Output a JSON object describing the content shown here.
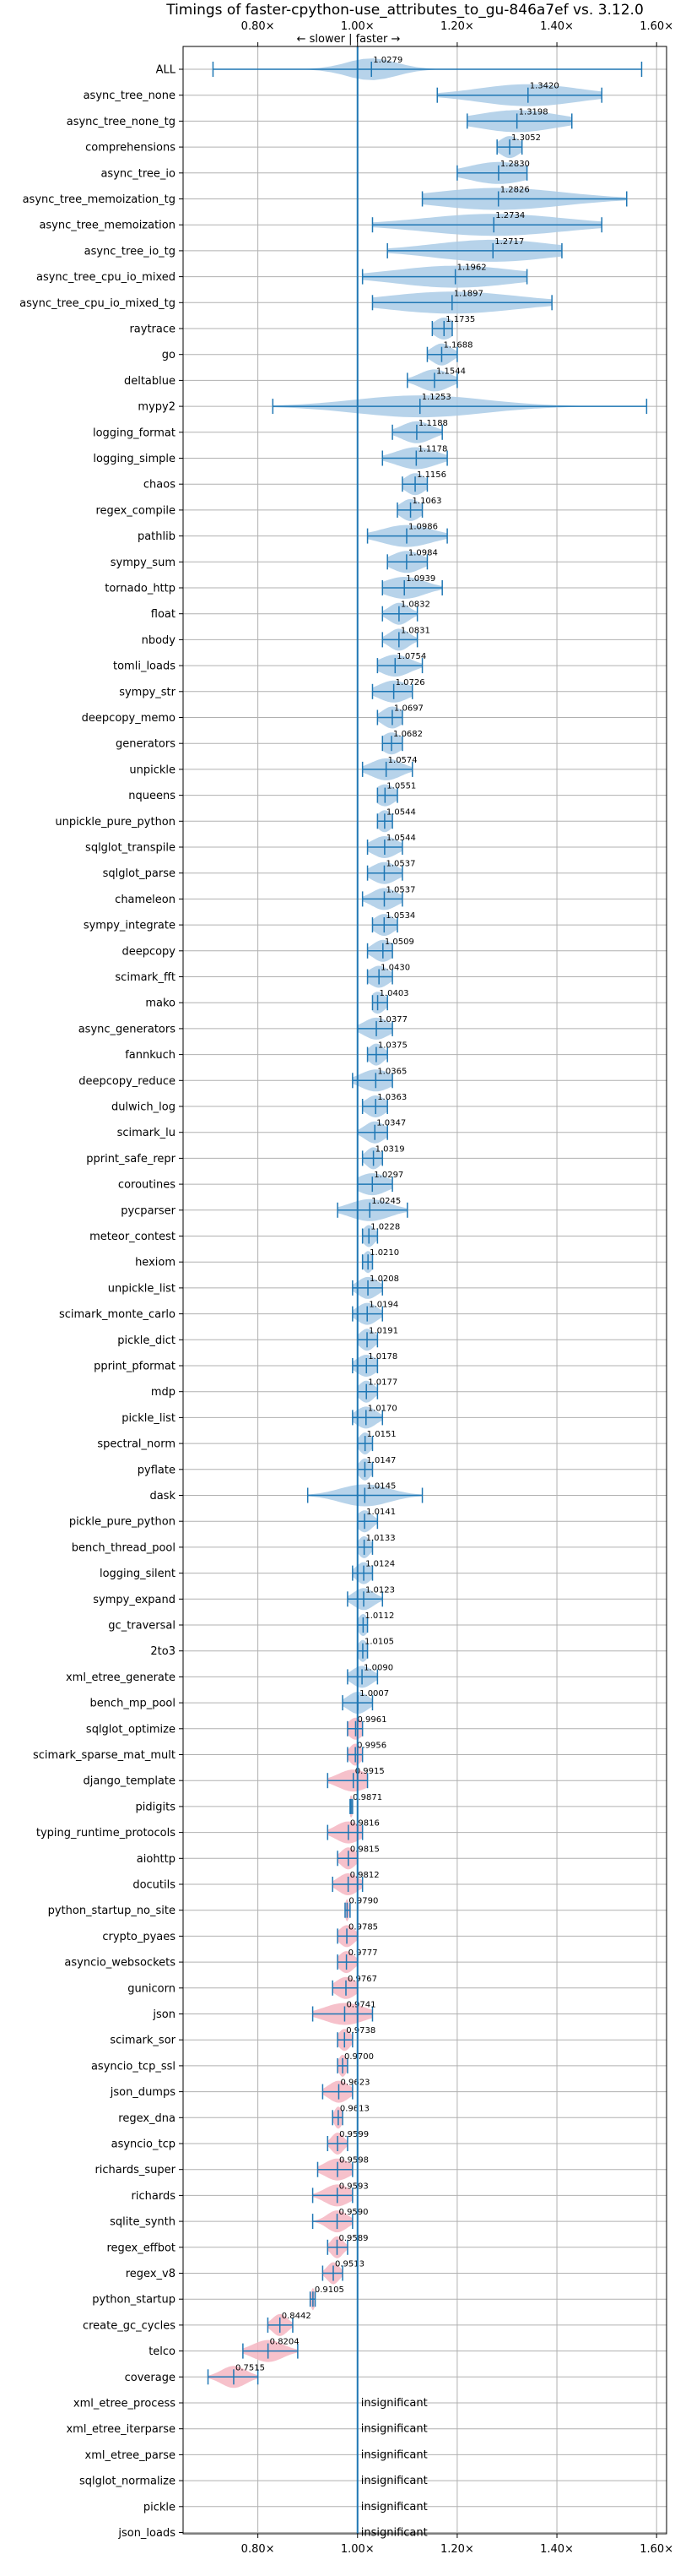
{
  "chart_data": {
    "type": "violin",
    "title": "Timings of faster-cpython-use_attributes_to_gu-846a7ef vs. 3.12.0",
    "annotation": "← slower | faster →",
    "xlim": [
      0.65,
      1.62
    ],
    "x_ticks": [
      0.8,
      1.0,
      1.2,
      1.4,
      1.6
    ],
    "x_tick_labels": [
      "0.80×",
      "1.00×",
      "1.20×",
      "1.40×",
      "1.60×"
    ],
    "reference_line": 1.0,
    "colors": {
      "faster": "#aacbe6",
      "slower": "#f4b6c2",
      "line": "#1f77b4",
      "grid": "#b0b0b0"
    },
    "benchmarks": [
      {
        "name": "ALL",
        "value": 1.0279,
        "label": "1.0279",
        "min": 0.71,
        "max": 1.57,
        "spread": 0.05
      },
      {
        "name": "async_tree_none",
        "value": 1.342,
        "label": "1.3420",
        "min": 1.16,
        "max": 1.49,
        "spread": 0.1
      },
      {
        "name": "async_tree_none_tg",
        "value": 1.3198,
        "label": "1.3198",
        "min": 1.22,
        "max": 1.43,
        "spread": 0.08
      },
      {
        "name": "comprehensions",
        "value": 1.3052,
        "label": "1.3052",
        "min": 1.28,
        "max": 1.33,
        "spread": 0.02
      },
      {
        "name": "async_tree_io",
        "value": 1.283,
        "label": "1.2830",
        "min": 1.2,
        "max": 1.34,
        "spread": 0.06
      },
      {
        "name": "async_tree_memoization_tg",
        "value": 1.2826,
        "label": "1.2826",
        "min": 1.13,
        "max": 1.54,
        "spread": 0.13
      },
      {
        "name": "async_tree_memoization",
        "value": 1.2734,
        "label": "1.2734",
        "min": 1.03,
        "max": 1.49,
        "spread": 0.14
      },
      {
        "name": "async_tree_io_tg",
        "value": 1.2717,
        "label": "1.2717",
        "min": 1.06,
        "max": 1.41,
        "spread": 0.12
      },
      {
        "name": "async_tree_cpu_io_mixed",
        "value": 1.1962,
        "label": "1.1962",
        "min": 1.01,
        "max": 1.34,
        "spread": 0.12
      },
      {
        "name": "async_tree_cpu_io_mixed_tg",
        "value": 1.1897,
        "label": "1.1897",
        "min": 1.03,
        "max": 1.39,
        "spread": 0.13
      },
      {
        "name": "raytrace",
        "value": 1.1735,
        "label": "1.1735",
        "min": 1.15,
        "max": 1.19,
        "spread": 0.02
      },
      {
        "name": "go",
        "value": 1.1688,
        "label": "1.1688",
        "min": 1.14,
        "max": 1.2,
        "spread": 0.02
      },
      {
        "name": "deltablue",
        "value": 1.1544,
        "label": "1.1544",
        "min": 1.1,
        "max": 1.2,
        "spread": 0.03
      },
      {
        "name": "mypy2",
        "value": 1.1253,
        "label": "1.1253",
        "min": 0.83,
        "max": 1.58,
        "spread": 0.13
      },
      {
        "name": "logging_format",
        "value": 1.1188,
        "label": "1.1188",
        "min": 1.07,
        "max": 1.17,
        "spread": 0.03
      },
      {
        "name": "logging_simple",
        "value": 1.1178,
        "label": "1.1178",
        "min": 1.05,
        "max": 1.18,
        "spread": 0.04
      },
      {
        "name": "chaos",
        "value": 1.1156,
        "label": "1.1156",
        "min": 1.09,
        "max": 1.14,
        "spread": 0.02
      },
      {
        "name": "regex_compile",
        "value": 1.1063,
        "label": "1.1063",
        "min": 1.08,
        "max": 1.13,
        "spread": 0.02
      },
      {
        "name": "pathlib",
        "value": 1.0986,
        "label": "1.0986",
        "min": 1.02,
        "max": 1.18,
        "spread": 0.05
      },
      {
        "name": "sympy_sum",
        "value": 1.0984,
        "label": "1.0984",
        "min": 1.06,
        "max": 1.14,
        "spread": 0.03
      },
      {
        "name": "tornado_http",
        "value": 1.0939,
        "label": "1.0939",
        "min": 1.05,
        "max": 1.17,
        "spread": 0.04
      },
      {
        "name": "float",
        "value": 1.0832,
        "label": "1.0832",
        "min": 1.05,
        "max": 1.12,
        "spread": 0.02
      },
      {
        "name": "nbody",
        "value": 1.0831,
        "label": "1.0831",
        "min": 1.05,
        "max": 1.12,
        "spread": 0.02
      },
      {
        "name": "tomli_loads",
        "value": 1.0754,
        "label": "1.0754",
        "min": 1.04,
        "max": 1.13,
        "spread": 0.03
      },
      {
        "name": "sympy_str",
        "value": 1.0726,
        "label": "1.0726",
        "min": 1.03,
        "max": 1.11,
        "spread": 0.03
      },
      {
        "name": "deepcopy_memo",
        "value": 1.0697,
        "label": "1.0697",
        "min": 1.04,
        "max": 1.09,
        "spread": 0.02
      },
      {
        "name": "generators",
        "value": 1.0682,
        "label": "1.0682",
        "min": 1.05,
        "max": 1.09,
        "spread": 0.02
      },
      {
        "name": "unpickle",
        "value": 1.0574,
        "label": "1.0574",
        "min": 1.01,
        "max": 1.11,
        "spread": 0.03
      },
      {
        "name": "nqueens",
        "value": 1.0551,
        "label": "1.0551",
        "min": 1.04,
        "max": 1.08,
        "spread": 0.02
      },
      {
        "name": "unpickle_pure_python",
        "value": 1.0544,
        "label": "1.0544",
        "min": 1.04,
        "max": 1.07,
        "spread": 0.015
      },
      {
        "name": "sqlglot_transpile",
        "value": 1.0544,
        "label": "1.0544",
        "min": 1.02,
        "max": 1.09,
        "spread": 0.025
      },
      {
        "name": "sqlglot_parse",
        "value": 1.0537,
        "label": "1.0537",
        "min": 1.02,
        "max": 1.09,
        "spread": 0.025
      },
      {
        "name": "chameleon",
        "value": 1.0537,
        "label": "1.0537",
        "min": 1.01,
        "max": 1.09,
        "spread": 0.025
      },
      {
        "name": "sympy_integrate",
        "value": 1.0534,
        "label": "1.0534",
        "min": 1.03,
        "max": 1.08,
        "spread": 0.02
      },
      {
        "name": "deepcopy",
        "value": 1.0509,
        "label": "1.0509",
        "min": 1.02,
        "max": 1.07,
        "spread": 0.02
      },
      {
        "name": "scimark_fft",
        "value": 1.043,
        "label": "1.0430",
        "min": 1.02,
        "max": 1.07,
        "spread": 0.02
      },
      {
        "name": "mako",
        "value": 1.0403,
        "label": "1.0403",
        "min": 1.03,
        "max": 1.06,
        "spread": 0.015
      },
      {
        "name": "async_generators",
        "value": 1.0377,
        "label": "1.0377",
        "min": 1.0,
        "max": 1.07,
        "spread": 0.025
      },
      {
        "name": "fannkuch",
        "value": 1.0375,
        "label": "1.0375",
        "min": 1.02,
        "max": 1.06,
        "spread": 0.015
      },
      {
        "name": "deepcopy_reduce",
        "value": 1.0365,
        "label": "1.0365",
        "min": 0.99,
        "max": 1.07,
        "spread": 0.03
      },
      {
        "name": "dulwich_log",
        "value": 1.0363,
        "label": "1.0363",
        "min": 1.01,
        "max": 1.06,
        "spread": 0.02
      },
      {
        "name": "scimark_lu",
        "value": 1.0347,
        "label": "1.0347",
        "min": 1.0,
        "max": 1.06,
        "spread": 0.02
      },
      {
        "name": "pprint_safe_repr",
        "value": 1.0319,
        "label": "1.0319",
        "min": 1.01,
        "max": 1.05,
        "spread": 0.015
      },
      {
        "name": "coroutines",
        "value": 1.0297,
        "label": "1.0297",
        "min": 1.0,
        "max": 1.07,
        "spread": 0.03
      },
      {
        "name": "pycparser",
        "value": 1.0245,
        "label": "1.0245",
        "min": 0.96,
        "max": 1.1,
        "spread": 0.04
      },
      {
        "name": "meteor_contest",
        "value": 1.0228,
        "label": "1.0228",
        "min": 1.01,
        "max": 1.04,
        "spread": 0.012
      },
      {
        "name": "hexiom",
        "value": 1.021,
        "label": "1.0210",
        "min": 1.01,
        "max": 1.03,
        "spread": 0.01
      },
      {
        "name": "unpickle_list",
        "value": 1.0208,
        "label": "1.0208",
        "min": 0.99,
        "max": 1.05,
        "spread": 0.02
      },
      {
        "name": "scimark_monte_carlo",
        "value": 1.0194,
        "label": "1.0194",
        "min": 0.99,
        "max": 1.05,
        "spread": 0.02
      },
      {
        "name": "pickle_dict",
        "value": 1.0191,
        "label": "1.0191",
        "min": 1.0,
        "max": 1.04,
        "spread": 0.015
      },
      {
        "name": "pprint_pformat",
        "value": 1.0178,
        "label": "1.0178",
        "min": 0.99,
        "max": 1.04,
        "spread": 0.02
      },
      {
        "name": "mdp",
        "value": 1.0177,
        "label": "1.0177",
        "min": 1.0,
        "max": 1.04,
        "spread": 0.015
      },
      {
        "name": "pickle_list",
        "value": 1.017,
        "label": "1.0170",
        "min": 0.99,
        "max": 1.05,
        "spread": 0.02
      },
      {
        "name": "spectral_norm",
        "value": 1.0151,
        "label": "1.0151",
        "min": 1.0,
        "max": 1.03,
        "spread": 0.012
      },
      {
        "name": "pyflate",
        "value": 1.0147,
        "label": "1.0147",
        "min": 1.0,
        "max": 1.03,
        "spread": 0.012
      },
      {
        "name": "dask",
        "value": 1.0145,
        "label": "1.0145",
        "min": 0.9,
        "max": 1.13,
        "spread": 0.05
      },
      {
        "name": "pickle_pure_python",
        "value": 1.0141,
        "label": "1.0141",
        "min": 1.0,
        "max": 1.04,
        "spread": 0.015
      },
      {
        "name": "bench_thread_pool",
        "value": 1.0133,
        "label": "1.0133",
        "min": 1.0,
        "max": 1.03,
        "spread": 0.012
      },
      {
        "name": "logging_silent",
        "value": 1.0124,
        "label": "1.0124",
        "min": 0.99,
        "max": 1.03,
        "spread": 0.015
      },
      {
        "name": "sympy_expand",
        "value": 1.0123,
        "label": "1.0123",
        "min": 0.98,
        "max": 1.05,
        "spread": 0.02
      },
      {
        "name": "gc_traversal",
        "value": 1.0112,
        "label": "1.0112",
        "min": 1.0,
        "max": 1.02,
        "spread": 0.01
      },
      {
        "name": "2to3",
        "value": 1.0105,
        "label": "1.0105",
        "min": 1.0,
        "max": 1.02,
        "spread": 0.01
      },
      {
        "name": "xml_etree_generate",
        "value": 1.009,
        "label": "1.0090",
        "min": 0.98,
        "max": 1.04,
        "spread": 0.02
      },
      {
        "name": "bench_mp_pool",
        "value": 1.0007,
        "label": "1.0007",
        "min": 0.97,
        "max": 1.03,
        "spread": 0.02
      },
      {
        "name": "sqlglot_optimize",
        "value": 0.9961,
        "label": "0.9961",
        "min": 0.98,
        "max": 1.01,
        "spread": 0.015
      },
      {
        "name": "scimark_sparse_mat_mult",
        "value": 0.9956,
        "label": "0.9956",
        "min": 0.98,
        "max": 1.01,
        "spread": 0.012
      },
      {
        "name": "django_template",
        "value": 0.9915,
        "label": "0.9915",
        "min": 0.94,
        "max": 1.02,
        "spread": 0.03
      },
      {
        "name": "pidigits",
        "value": 0.9871,
        "label": "0.9871",
        "min": 0.985,
        "max": 0.99,
        "spread": 0.004
      },
      {
        "name": "typing_runtime_protocols",
        "value": 0.9816,
        "label": "0.9816",
        "min": 0.94,
        "max": 1.01,
        "spread": 0.025
      },
      {
        "name": "aiohttp",
        "value": 0.9815,
        "label": "0.9815",
        "min": 0.96,
        "max": 1.0,
        "spread": 0.015
      },
      {
        "name": "docutils",
        "value": 0.9812,
        "label": "0.9812",
        "min": 0.95,
        "max": 1.01,
        "spread": 0.02
      },
      {
        "name": "python_startup_no_site",
        "value": 0.979,
        "label": "0.9790",
        "min": 0.975,
        "max": 0.985,
        "spread": 0.004
      },
      {
        "name": "crypto_pyaes",
        "value": 0.9785,
        "label": "0.9785",
        "min": 0.96,
        "max": 1.0,
        "spread": 0.015
      },
      {
        "name": "asyncio_websockets",
        "value": 0.9777,
        "label": "0.9777",
        "min": 0.96,
        "max": 1.0,
        "spread": 0.015
      },
      {
        "name": "gunicorn",
        "value": 0.9767,
        "label": "0.9767",
        "min": 0.95,
        "max": 1.0,
        "spread": 0.02
      },
      {
        "name": "json",
        "value": 0.9741,
        "label": "0.9741",
        "min": 0.91,
        "max": 1.03,
        "spread": 0.04
      },
      {
        "name": "scimark_sor",
        "value": 0.9738,
        "label": "0.9738",
        "min": 0.96,
        "max": 0.99,
        "spread": 0.012
      },
      {
        "name": "asyncio_tcp_ssl",
        "value": 0.97,
        "label": "0.9700",
        "min": 0.96,
        "max": 0.98,
        "spread": 0.008
      },
      {
        "name": "json_dumps",
        "value": 0.9623,
        "label": "0.9623",
        "min": 0.93,
        "max": 0.99,
        "spread": 0.02
      },
      {
        "name": "regex_dna",
        "value": 0.9613,
        "label": "0.9613",
        "min": 0.95,
        "max": 0.97,
        "spread": 0.008
      },
      {
        "name": "asyncio_tcp",
        "value": 0.9599,
        "label": "0.9599",
        "min": 0.94,
        "max": 0.98,
        "spread": 0.012
      },
      {
        "name": "richards_super",
        "value": 0.9598,
        "label": "0.9598",
        "min": 0.92,
        "max": 0.99,
        "spread": 0.025
      },
      {
        "name": "richards",
        "value": 0.9593,
        "label": "0.9593",
        "min": 0.91,
        "max": 0.99,
        "spread": 0.025
      },
      {
        "name": "sqlite_synth",
        "value": 0.959,
        "label": "0.9590",
        "min": 0.91,
        "max": 0.99,
        "spread": 0.02
      },
      {
        "name": "regex_effbot",
        "value": 0.9589,
        "label": "0.9589",
        "min": 0.94,
        "max": 0.98,
        "spread": 0.012
      },
      {
        "name": "regex_v8",
        "value": 0.9513,
        "label": "0.9513",
        "min": 0.93,
        "max": 0.97,
        "spread": 0.012
      },
      {
        "name": "python_startup",
        "value": 0.9105,
        "label": "0.9105",
        "min": 0.905,
        "max": 0.915,
        "spread": 0.004
      },
      {
        "name": "create_gc_cycles",
        "value": 0.8442,
        "label": "0.8442",
        "min": 0.82,
        "max": 0.87,
        "spread": 0.015
      },
      {
        "name": "telco",
        "value": 0.8204,
        "label": "0.8204",
        "min": 0.77,
        "max": 0.88,
        "spread": 0.03
      },
      {
        "name": "coverage",
        "value": 0.7515,
        "label": "0.7515",
        "min": 0.7,
        "max": 0.8,
        "spread": 0.025
      },
      {
        "name": "xml_etree_process",
        "value": null,
        "label": "insignificant"
      },
      {
        "name": "xml_etree_iterparse",
        "value": null,
        "label": "insignificant"
      },
      {
        "name": "xml_etree_parse",
        "value": null,
        "label": "insignificant"
      },
      {
        "name": "sqlglot_normalize",
        "value": null,
        "label": "insignificant"
      },
      {
        "name": "pickle",
        "value": null,
        "label": "insignificant"
      },
      {
        "name": "json_loads",
        "value": null,
        "label": "insignificant"
      }
    ]
  }
}
